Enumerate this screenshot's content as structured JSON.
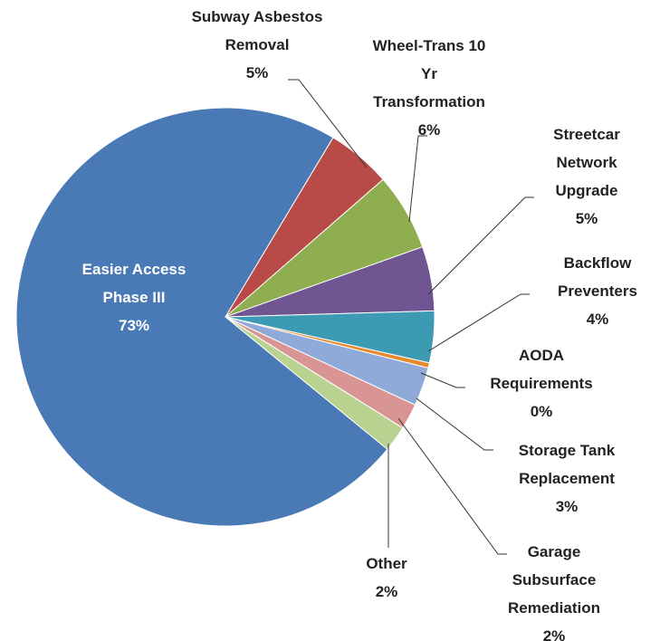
{
  "chart_data": {
    "type": "pie",
    "categories": [
      "Easier Access Phase III",
      "Subway Asbestos Removal",
      "Wheel-Trans 10 Yr Transformation",
      "Streetcar Network Upgrade",
      "Backflow Preventers",
      "AODA Requirements",
      "Storage Tank Replacement",
      "Garage Subsurface Remediation",
      "Other"
    ],
    "values": [
      73,
      5,
      6,
      5,
      4,
      0.4,
      3,
      2,
      2
    ],
    "value_labels": [
      "73%",
      "5%",
      "6%",
      "5%",
      "4%",
      "0%",
      "3%",
      "2%",
      "2%"
    ],
    "colors": [
      "#4a7ab5",
      "#b84a47",
      "#8fae4f",
      "#6f5692",
      "#3c9ab3",
      "#e58a2c",
      "#8fa9d8",
      "#d99594",
      "#b9d28f"
    ]
  }
}
